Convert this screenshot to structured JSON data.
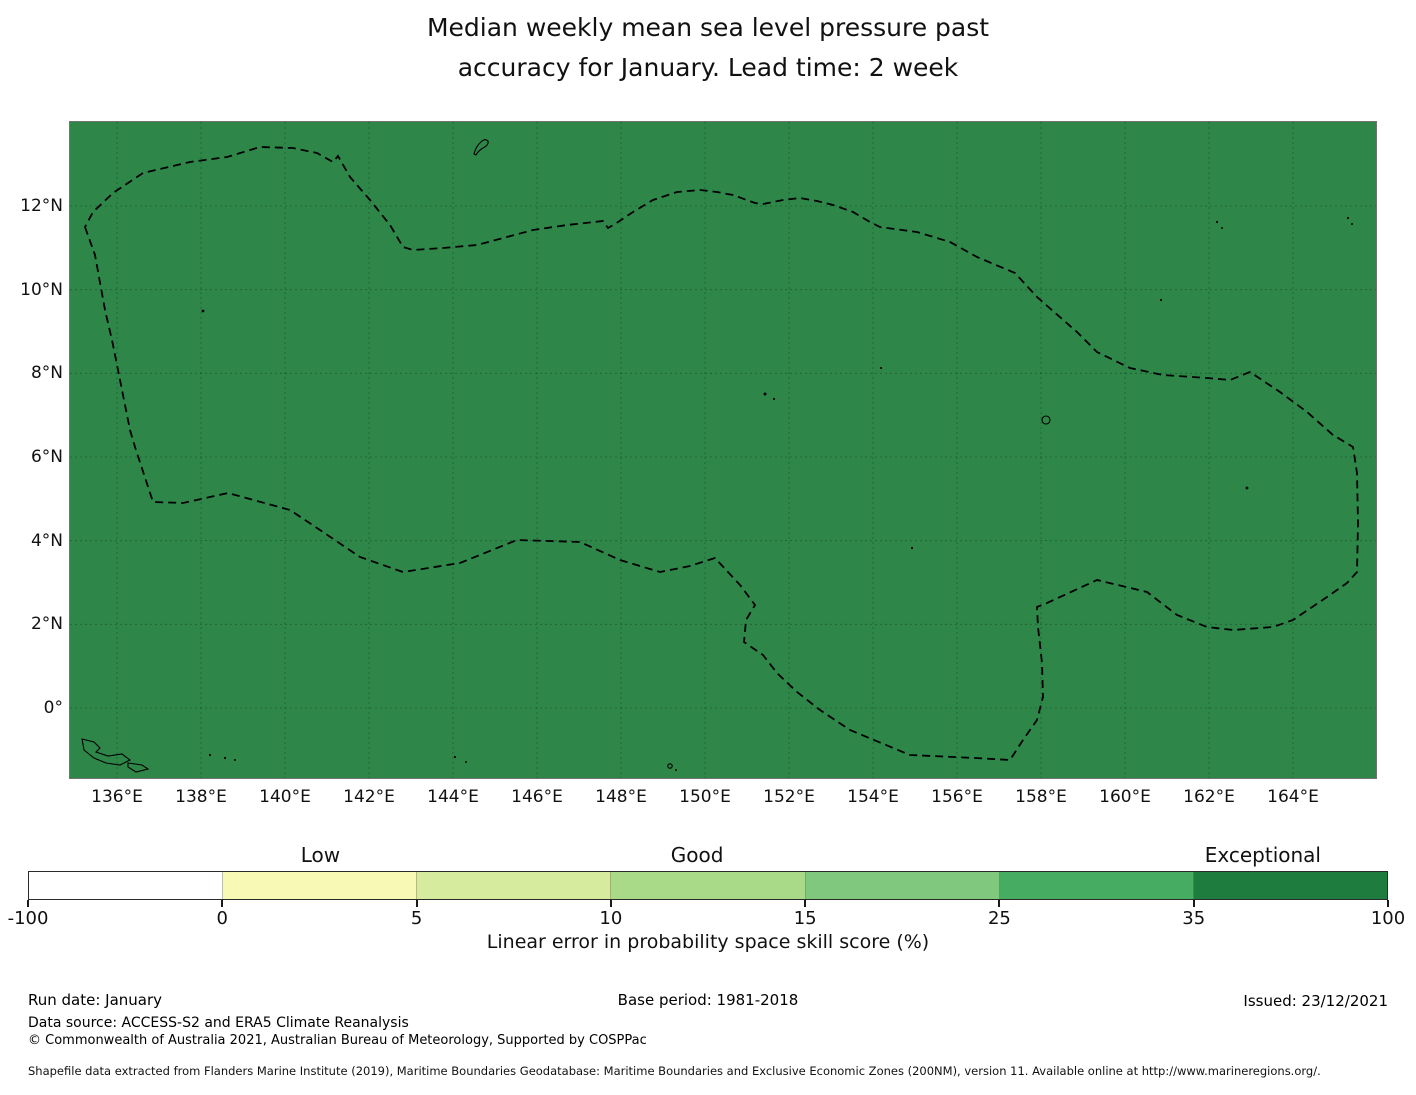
{
  "title": {
    "line1": "Median weekly mean sea level pressure past",
    "line2": "accuracy for January. Lead time: 2 week"
  },
  "map": {
    "fill_color": "#2e8749",
    "boundary_style": "black dashed EEZ outline",
    "y_ticks": [
      "12°N",
      "10°N",
      "8°N",
      "6°N",
      "4°N",
      "2°N",
      "0°"
    ],
    "x_ticks": [
      "136°E",
      "138°E",
      "140°E",
      "142°E",
      "144°E",
      "146°E",
      "148°E",
      "150°E",
      "152°E",
      "154°E",
      "156°E",
      "158°E",
      "160°E",
      "162°E",
      "164°E"
    ]
  },
  "colorbar": {
    "ticks": [
      "-100",
      "0",
      "5",
      "10",
      "15",
      "25",
      "35",
      "100"
    ],
    "segment_colors": [
      "#ffffff",
      "#f8f9b4",
      "#d7eb9e",
      "#a9da88",
      "#7fc87d",
      "#46ac62",
      "#1e7c3e"
    ],
    "categories": [
      "Low",
      "Good",
      "Exceptional"
    ],
    "axis_label": "Linear error in probability space skill score (%)"
  },
  "footer": {
    "run_date": "Run date: January",
    "base_period": "Base period: 1981-2018",
    "issued": "Issued: 23/12/2021",
    "data_source": "Data source: ACCESS-S2 and ERA5 Climate Reanalysis",
    "copyright": "© Commonwealth of Australia 2021, Australian Bureau of Meteorology, Supported by COSPPac",
    "shapefile_note": "Shapefile data extracted from Flanders Marine Institute (2019), Maritime Boundaries Geodatabase: Maritime Boundaries and Exclusive Economic Zones (200NM), version 11. Available online at http://www.marineregions.org/."
  },
  "chart_data": {
    "type": "heatmap",
    "title": "Median weekly mean sea level pressure past accuracy for January. Lead time: 2 week",
    "x_ticks": [
      "136°E",
      "138°E",
      "140°E",
      "142°E",
      "144°E",
      "146°E",
      "148°E",
      "150°E",
      "152°E",
      "154°E",
      "156°E",
      "158°E",
      "160°E",
      "162°E",
      "164°E"
    ],
    "y_ticks": [
      "12°N",
      "10°N",
      "8°N",
      "6°N",
      "4°N",
      "2°N",
      "0°"
    ],
    "lon_range_deg_east": [
      134.9,
      166.0
    ],
    "lat_range_deg_north": [
      -1.7,
      14.0
    ],
    "grid": "on, dashed, at 2-degree intervals",
    "colorbar": {
      "label": "Linear error in probability space skill score (%)",
      "orientation": "horizontal",
      "boundaries": [
        -100,
        0,
        5,
        10,
        15,
        25,
        35,
        100
      ],
      "colors": [
        "#ffffff",
        "#f8f9b4",
        "#d7eb9e",
        "#a9da88",
        "#7fc87d",
        "#46ac62",
        "#1e7c3e"
      ],
      "category_labels": [
        {
          "label": "Low",
          "over_bin": [
            0,
            5
          ]
        },
        {
          "label": "Good",
          "over_bin": [
            10,
            15
          ]
        },
        {
          "label": "Exceptional",
          "over_bin": [
            35,
            100
          ]
        }
      ]
    },
    "field_values": "Skill score field is visually uniform dark green (approx. 35-100 'Exceptional' class) over the entire mapped Micronesia region",
    "overlays": "Dashed black maritime Exclusive Economic Zone boundary polygon; small island outlines (Guam, Yap, Chuuk, Pohnpei, atolls, north New Guinea islands)"
  }
}
